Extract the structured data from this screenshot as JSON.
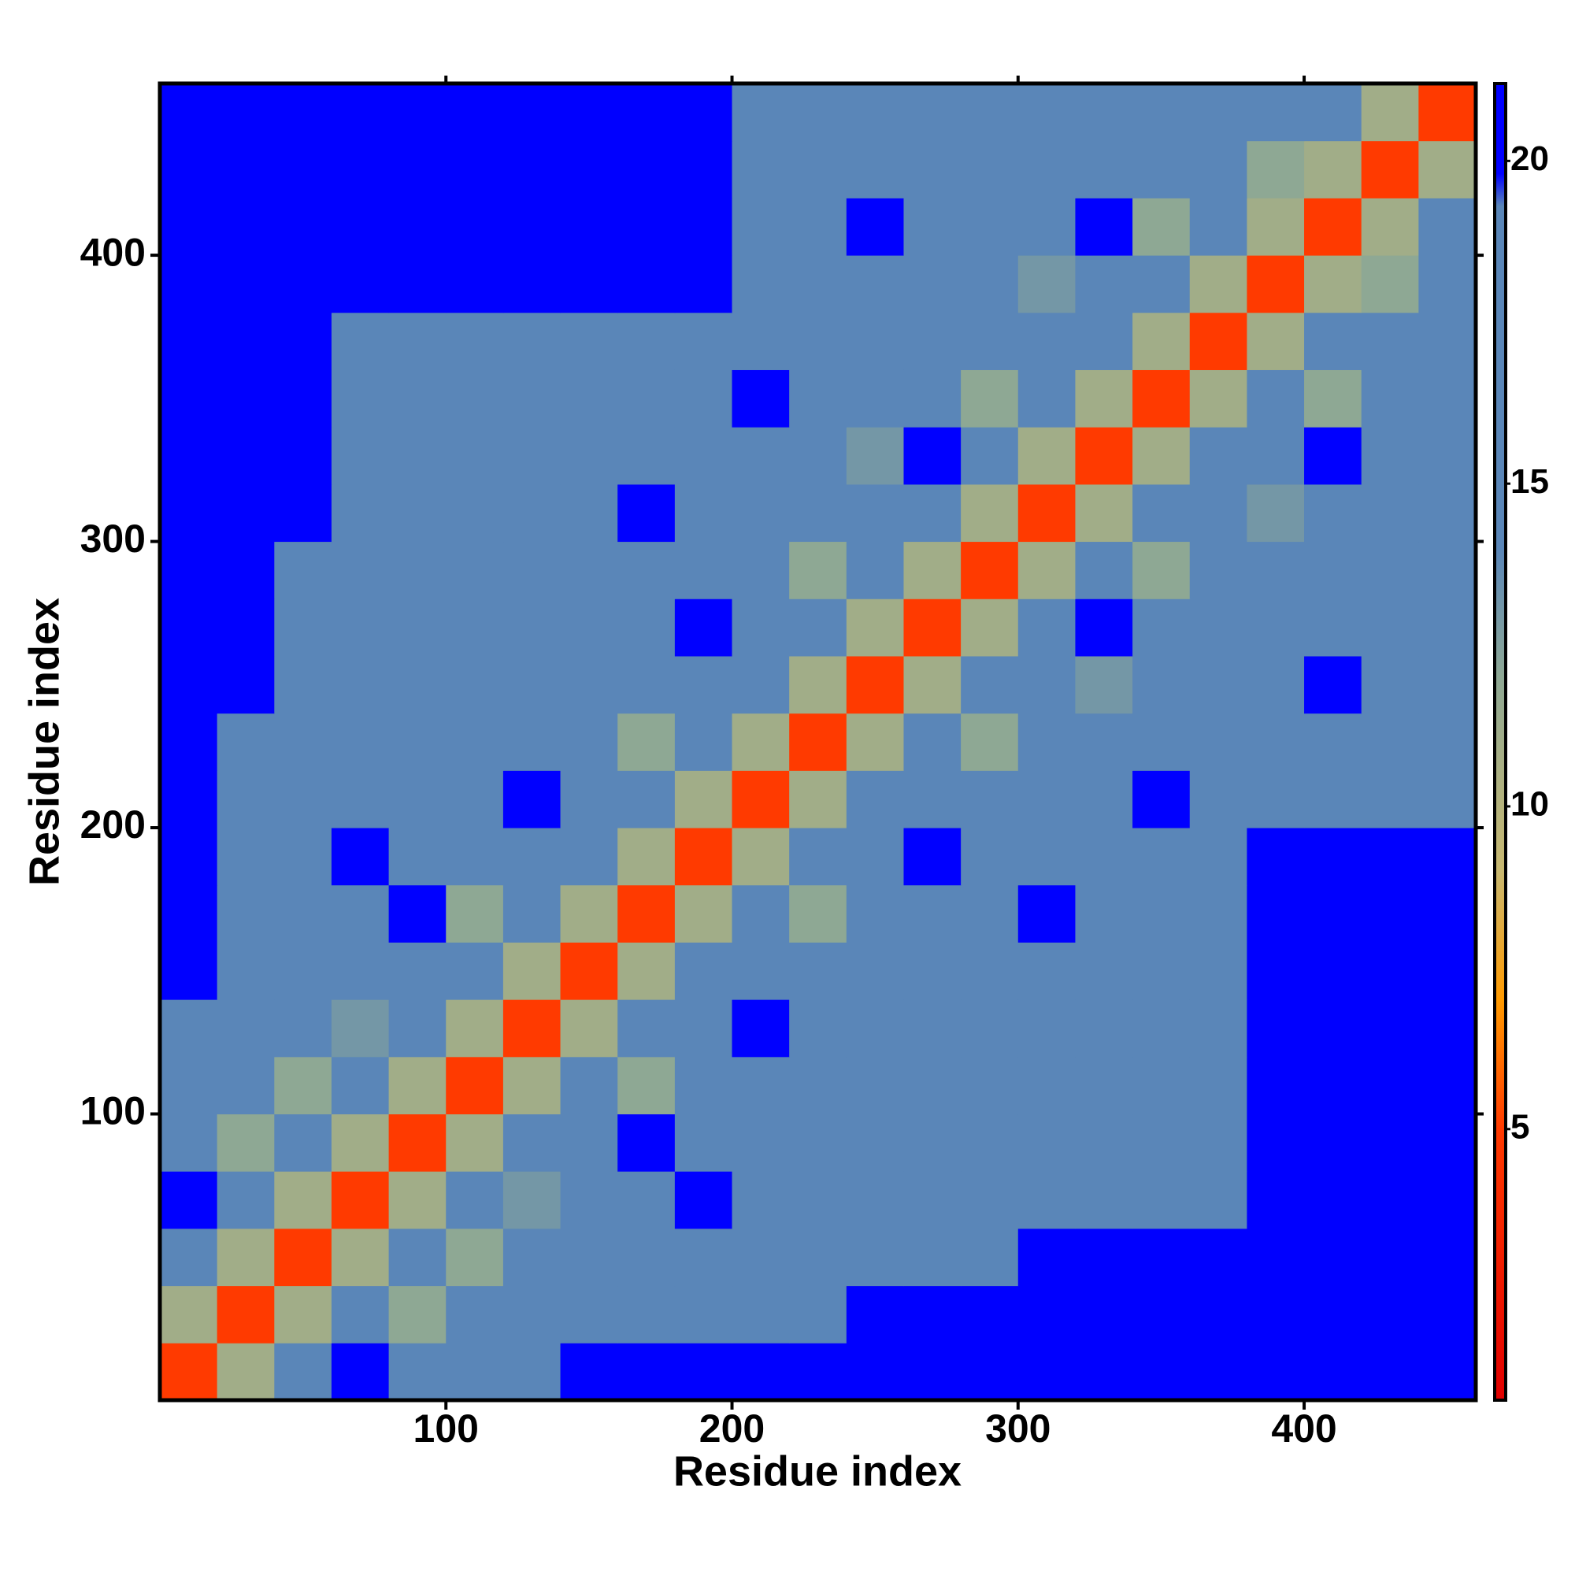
{
  "chart_data": {
    "type": "heatmap",
    "xlabel": "Residue index",
    "ylabel": "Residue index",
    "xlim": [
      0,
      460
    ],
    "ylim": [
      0,
      460
    ],
    "xticks": [
      100,
      200,
      300,
      400
    ],
    "yticks": [
      100,
      200,
      300,
      400
    ],
    "bins": [
      0,
      20,
      40,
      60,
      80,
      100,
      120,
      140,
      160,
      180,
      200,
      220,
      240,
      260,
      280,
      300,
      320,
      340,
      360,
      380,
      400,
      420,
      440,
      460
    ],
    "values": [
      [
        5,
        11,
        17,
        20,
        17,
        17,
        17,
        21,
        21,
        21,
        21,
        21,
        21,
        21,
        21,
        21,
        21,
        21,
        21,
        21,
        21,
        21,
        21
      ],
      [
        11,
        5,
        11,
        17,
        12,
        17,
        17,
        17,
        17,
        17,
        17,
        17,
        21,
        21,
        21,
        21,
        21,
        21,
        21,
        21,
        21,
        21,
        21
      ],
      [
        17,
        11,
        5,
        11,
        17,
        12,
        17,
        17,
        17,
        17,
        17,
        17,
        17,
        17,
        17,
        21,
        21,
        21,
        21,
        21,
        21,
        21,
        21
      ],
      [
        20,
        17,
        11,
        5,
        11,
        17,
        13,
        17,
        17,
        20,
        17,
        17,
        17,
        17,
        17,
        17,
        17,
        17,
        17,
        21,
        21,
        21,
        21
      ],
      [
        17,
        12,
        17,
        11,
        5,
        11,
        17,
        17,
        20,
        17,
        17,
        17,
        17,
        17,
        17,
        17,
        17,
        17,
        17,
        21,
        21,
        21,
        21
      ],
      [
        17,
        17,
        12,
        17,
        11,
        5,
        11,
        17,
        12,
        17,
        17,
        17,
        17,
        17,
        17,
        17,
        17,
        17,
        17,
        21,
        21,
        21,
        21
      ],
      [
        17,
        17,
        17,
        13,
        17,
        11,
        5,
        11,
        17,
        17,
        20,
        17,
        17,
        17,
        17,
        17,
        17,
        17,
        17,
        21,
        21,
        21,
        21
      ],
      [
        21,
        17,
        17,
        17,
        17,
        17,
        11,
        5,
        11,
        17,
        17,
        17,
        17,
        17,
        17,
        17,
        17,
        17,
        17,
        21,
        21,
        21,
        21
      ],
      [
        21,
        17,
        17,
        17,
        20,
        12,
        17,
        11,
        5,
        11,
        17,
        12,
        17,
        17,
        17,
        20,
        17,
        17,
        17,
        21,
        21,
        21,
        21
      ],
      [
        21,
        17,
        17,
        20,
        17,
        17,
        17,
        17,
        11,
        5,
        11,
        17,
        17,
        20,
        17,
        17,
        17,
        17,
        17,
        21,
        21,
        21,
        21
      ],
      [
        21,
        17,
        17,
        17,
        17,
        17,
        20,
        17,
        17,
        11,
        5,
        11,
        17,
        17,
        17,
        17,
        17,
        20,
        17,
        17,
        17,
        17,
        17
      ],
      [
        21,
        17,
        17,
        17,
        17,
        17,
        17,
        17,
        12,
        17,
        11,
        5,
        11,
        17,
        12,
        17,
        17,
        17,
        17,
        17,
        17,
        17,
        17
      ],
      [
        21,
        21,
        17,
        17,
        17,
        17,
        17,
        17,
        17,
        17,
        17,
        11,
        5,
        11,
        17,
        17,
        13,
        17,
        17,
        17,
        20,
        17,
        17
      ],
      [
        21,
        21,
        17,
        17,
        17,
        17,
        17,
        17,
        17,
        20,
        17,
        17,
        11,
        5,
        11,
        17,
        20,
        17,
        17,
        17,
        17,
        17,
        17
      ],
      [
        21,
        21,
        17,
        17,
        17,
        17,
        17,
        17,
        17,
        17,
        17,
        12,
        17,
        11,
        5,
        11,
        17,
        12,
        17,
        17,
        17,
        17,
        17
      ],
      [
        21,
        21,
        21,
        17,
        17,
        17,
        17,
        17,
        20,
        17,
        17,
        17,
        17,
        17,
        11,
        5,
        11,
        17,
        17,
        13,
        17,
        17,
        17
      ],
      [
        21,
        21,
        21,
        17,
        17,
        17,
        17,
        17,
        17,
        17,
        17,
        17,
        13,
        20,
        17,
        11,
        5,
        11,
        17,
        17,
        20,
        17,
        17
      ],
      [
        21,
        21,
        21,
        17,
        17,
        17,
        17,
        17,
        17,
        17,
        20,
        17,
        17,
        17,
        12,
        17,
        11,
        5,
        11,
        17,
        12,
        17,
        17
      ],
      [
        21,
        21,
        21,
        17,
        17,
        17,
        17,
        17,
        17,
        17,
        17,
        17,
        17,
        17,
        17,
        17,
        17,
        11,
        5,
        11,
        17,
        17,
        17
      ],
      [
        21,
        21,
        21,
        21,
        21,
        21,
        21,
        21,
        21,
        21,
        17,
        17,
        17,
        17,
        17,
        13,
        17,
        17,
        11,
        5,
        11,
        12,
        17
      ],
      [
        21,
        21,
        21,
        21,
        21,
        21,
        21,
        21,
        21,
        21,
        17,
        17,
        20,
        17,
        17,
        17,
        20,
        12,
        17,
        11,
        5,
        11,
        17
      ],
      [
        21,
        21,
        21,
        21,
        21,
        21,
        21,
        21,
        21,
        21,
        17,
        17,
        17,
        17,
        17,
        17,
        17,
        17,
        17,
        12,
        11,
        5,
        11
      ],
      [
        21,
        21,
        21,
        21,
        21,
        21,
        21,
        21,
        21,
        21,
        17,
        17,
        17,
        17,
        17,
        17,
        17,
        17,
        17,
        17,
        17,
        11,
        5
      ]
    ],
    "colorbar": {
      "lim": [
        0.8,
        21.2
      ],
      "ticks": [
        5,
        10,
        15,
        20
      ],
      "scale": [
        {
          "value": 0.8,
          "color": "#e00000"
        },
        {
          "value": 5,
          "color": "#ff3a00"
        },
        {
          "value": 7,
          "color": "#ff9a00"
        },
        {
          "value": 9,
          "color": "#c8b870"
        },
        {
          "value": 12,
          "color": "#8ea894"
        },
        {
          "value": 14,
          "color": "#5a86b8"
        },
        {
          "value": 19.3,
          "color": "#5a86b8"
        },
        {
          "value": 19.8,
          "color": "#0000ff"
        },
        {
          "value": 21.2,
          "color": "#0000ff"
        }
      ]
    }
  }
}
